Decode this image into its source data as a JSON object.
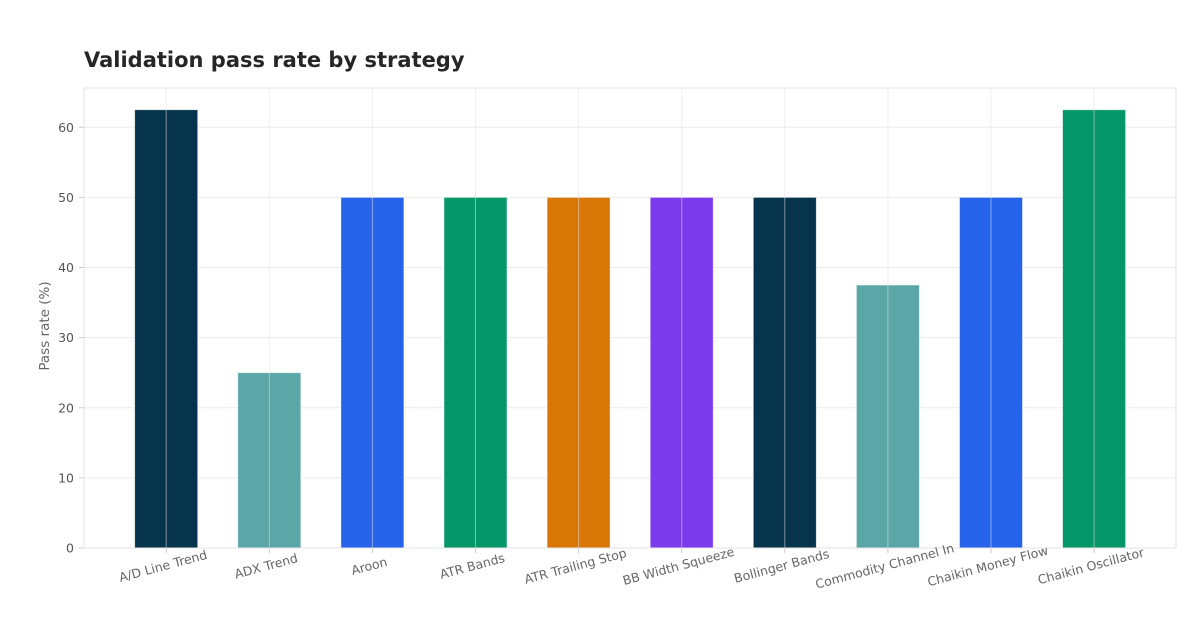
{
  "chart_data": {
    "type": "bar",
    "title": "Validation pass rate by strategy",
    "xlabel": "",
    "ylabel": "Pass rate (%)",
    "ylim": [
      0,
      65.6
    ],
    "yticks": [
      0,
      10,
      20,
      30,
      40,
      50,
      60
    ],
    "grid": true,
    "categories": [
      "A/D Line Trend",
      "ADX Trend",
      "Aroon",
      "ATR Bands",
      "ATR Trailing Stop",
      "BB Width Squeeze",
      "Bollinger Bands",
      "Commodity Channel In",
      "Chaikin Money Flow",
      "Chaikin Oscillator"
    ],
    "values": [
      62.5,
      25.0,
      50.0,
      50.0,
      50.0,
      50.0,
      50.0,
      37.5,
      50.0,
      62.5
    ],
    "colors": [
      "#06344d",
      "#5ba6a6",
      "#2563eb",
      "#059669",
      "#d97706",
      "#7c3aed",
      "#06344d",
      "#5ba6a6",
      "#2563eb",
      "#059669"
    ]
  }
}
